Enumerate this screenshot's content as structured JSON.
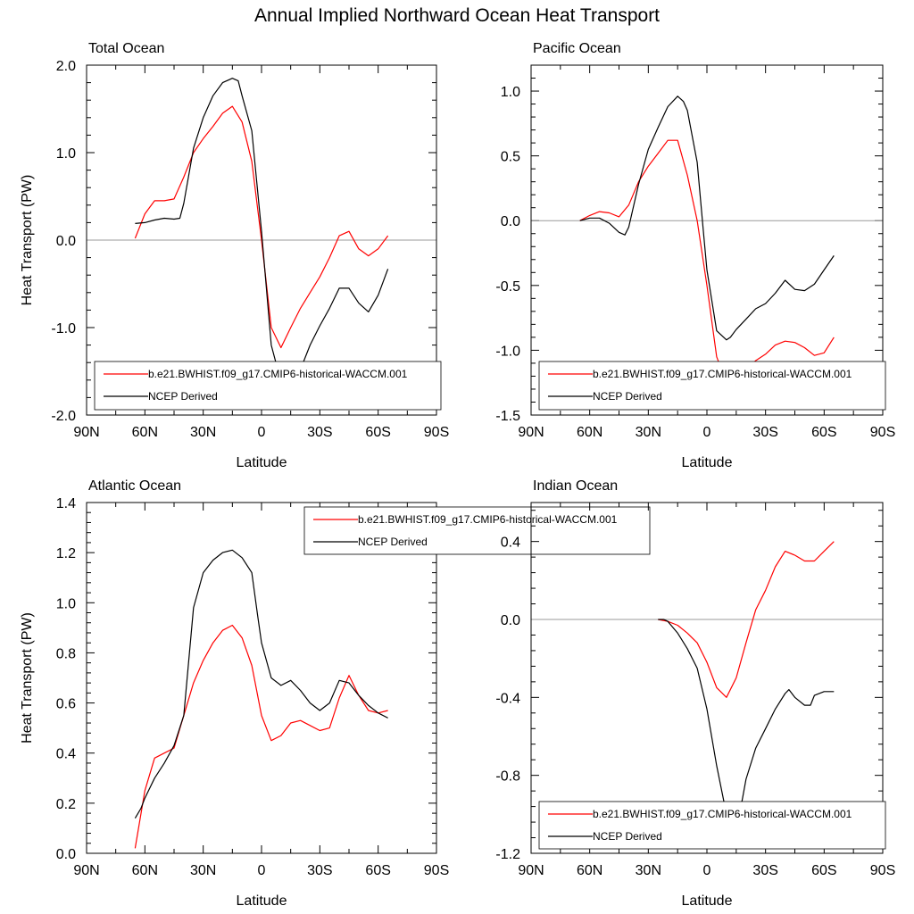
{
  "title": "Annual Implied Northward Ocean Heat Transport",
  "colors": {
    "model": "#ff0000",
    "obs": "#000000",
    "zero_line": "#999999"
  },
  "chart_data": [
    {
      "type": "line",
      "title": "Total Ocean",
      "xlabel": "Latitude",
      "ylabel": "Heat Transport (PW)",
      "xlim": [
        90,
        -90
      ],
      "ylim": [
        -2.0,
        2.0
      ],
      "x_ticks": [
        90,
        60,
        30,
        0,
        -30,
        -60,
        -90
      ],
      "x_tick_labels": [
        "90N",
        "60N",
        "30N",
        "0",
        "30S",
        "60S",
        "90S"
      ],
      "y_ticks": [
        -2.0,
        -1.0,
        0.0,
        1.0,
        2.0
      ],
      "y_tick_labels": [
        "-2.0",
        "-1.0",
        "0.0",
        "1.0",
        "2.0"
      ],
      "legend": [
        "b.e21.BWHIST.f09_g17.CMIP6-historical-WACCM.001",
        "NCEP Derived"
      ],
      "legend_location": "bottom",
      "series": [
        {
          "name": "b.e21.BWHIST.f09_g17.CMIP6-historical-WACCM.001",
          "x": [
            65,
            60,
            55,
            50,
            45,
            40,
            35,
            30,
            25,
            20,
            15,
            10,
            5,
            0,
            -5,
            -10,
            -15,
            -20,
            -25,
            -30,
            -35,
            -40,
            -45,
            -50,
            -55,
            -60,
            -65
          ],
          "y": [
            0.02,
            0.3,
            0.45,
            0.45,
            0.47,
            0.72,
            1.0,
            1.16,
            1.3,
            1.45,
            1.53,
            1.35,
            0.9,
            0.0,
            -1.0,
            -1.23,
            -1.0,
            -0.78,
            -0.6,
            -0.42,
            -0.2,
            0.05,
            0.1,
            -0.1,
            -0.18,
            -0.1,
            0.05
          ]
        },
        {
          "name": "NCEP Derived",
          "x": [
            65,
            60,
            55,
            50,
            45,
            42,
            40,
            35,
            30,
            25,
            20,
            15,
            12,
            10,
            5,
            0,
            -5,
            -10,
            -12,
            -15,
            -20,
            -25,
            -30,
            -35,
            -40,
            -45,
            -50,
            -55,
            -60,
            -65
          ],
          "y": [
            0.19,
            0.2,
            0.23,
            0.25,
            0.24,
            0.25,
            0.42,
            1.05,
            1.4,
            1.65,
            1.8,
            1.85,
            1.82,
            1.65,
            1.25,
            0.1,
            -1.2,
            -1.62,
            -1.67,
            -1.62,
            -1.48,
            -1.2,
            -0.98,
            -0.78,
            -0.55,
            -0.55,
            -0.72,
            -0.82,
            -0.63,
            -0.33
          ]
        }
      ]
    },
    {
      "type": "line",
      "title": "Pacific Ocean",
      "xlabel": "Latitude",
      "ylabel": "",
      "xlim": [
        90,
        -90
      ],
      "ylim": [
        -1.5,
        1.2
      ],
      "x_ticks": [
        90,
        60,
        30,
        0,
        -30,
        -60,
        -90
      ],
      "x_tick_labels": [
        "90N",
        "60N",
        "30N",
        "0",
        "30S",
        "60S",
        "90S"
      ],
      "y_ticks": [
        -1.5,
        -1.0,
        -0.5,
        0.0,
        0.5,
        1.0
      ],
      "y_tick_labels": [
        "-1.5",
        "-1.0",
        "-0.5",
        "0.0",
        "0.5",
        "1.0"
      ],
      "legend": [
        "b.e21.BWHIST.f09_g17.CMIP6-historical-WACCM.001",
        "NCEP Derived"
      ],
      "legend_location": "bottom",
      "series": [
        {
          "name": "b.e21.BWHIST.f09_g17.CMIP6-historical-WACCM.001",
          "x": [
            65,
            60,
            55,
            50,
            45,
            40,
            35,
            30,
            25,
            20,
            15,
            10,
            5,
            0,
            -5,
            -10,
            -15,
            -20,
            -25,
            -30,
            -35,
            -40,
            -45,
            -50,
            -55,
            -60,
            -65
          ],
          "y": [
            0.0,
            0.04,
            0.07,
            0.06,
            0.03,
            0.12,
            0.3,
            0.42,
            0.52,
            0.62,
            0.62,
            0.35,
            0.0,
            -0.5,
            -1.05,
            -1.25,
            -1.22,
            -1.15,
            -1.08,
            -1.03,
            -0.96,
            -0.93,
            -0.94,
            -0.98,
            -1.04,
            -1.02,
            -0.9
          ]
        },
        {
          "name": "NCEP Derived",
          "x": [
            65,
            60,
            55,
            50,
            45,
            42,
            40,
            35,
            30,
            25,
            20,
            15,
            12,
            10,
            5,
            2,
            0,
            -5,
            -10,
            -12,
            -15,
            -20,
            -25,
            -30,
            -35,
            -40,
            -45,
            -50,
            -55,
            -60,
            -65
          ],
          "y": [
            0.0,
            0.02,
            0.02,
            -0.02,
            -0.09,
            -0.11,
            -0.05,
            0.28,
            0.55,
            0.72,
            0.88,
            0.96,
            0.92,
            0.85,
            0.45,
            -0.05,
            -0.38,
            -0.85,
            -0.92,
            -0.9,
            -0.84,
            -0.76,
            -0.68,
            -0.64,
            -0.56,
            -0.46,
            -0.53,
            -0.54,
            -0.49,
            -0.38,
            -0.27
          ]
        }
      ]
    },
    {
      "type": "line",
      "title": "Atlantic Ocean",
      "xlabel": "Latitude",
      "ylabel": "Heat Transport (PW)",
      "xlim": [
        90,
        -90
      ],
      "ylim": [
        0.0,
        1.4
      ],
      "x_ticks": [
        90,
        60,
        30,
        0,
        -30,
        -60,
        -90
      ],
      "x_tick_labels": [
        "90N",
        "60N",
        "30N",
        "0",
        "30S",
        "60S",
        "90S"
      ],
      "y_ticks": [
        0.0,
        0.2,
        0.4,
        0.6,
        0.8,
        1.0,
        1.2,
        1.4
      ],
      "y_tick_labels": [
        "0.0",
        "0.2",
        "0.4",
        "0.6",
        "0.8",
        "1.0",
        "1.2",
        "1.4"
      ],
      "legend": [
        "b.e21.BWHIST.f09_g17.CMIP6-historical-WACCM.001",
        "NCEP Derived"
      ],
      "legend_location": "top-center",
      "series": [
        {
          "name": "b.e21.BWHIST.f09_g17.CMIP6-historical-WACCM.001",
          "x": [
            65,
            60,
            55,
            50,
            45,
            40,
            35,
            30,
            25,
            20,
            15,
            10,
            5,
            0,
            -5,
            -10,
            -15,
            -20,
            -25,
            -30,
            -35,
            -40,
            -45,
            -50,
            -55,
            -60,
            -65
          ],
          "y": [
            0.02,
            0.25,
            0.38,
            0.4,
            0.42,
            0.55,
            0.68,
            0.77,
            0.84,
            0.89,
            0.91,
            0.86,
            0.75,
            0.55,
            0.45,
            0.47,
            0.52,
            0.53,
            0.51,
            0.49,
            0.5,
            0.62,
            0.71,
            0.63,
            0.57,
            0.56,
            0.57
          ]
        },
        {
          "name": "NCEP Derived",
          "x": [
            65,
            62,
            60,
            55,
            50,
            45,
            40,
            35,
            30,
            25,
            20,
            15,
            10,
            5,
            2,
            0,
            -5,
            -10,
            -15,
            -20,
            -25,
            -30,
            -35,
            -40,
            -45,
            -50,
            -55,
            -60,
            -65
          ],
          "y": [
            0.14,
            0.18,
            0.22,
            0.3,
            0.36,
            0.43,
            0.55,
            0.98,
            1.12,
            1.17,
            1.2,
            1.21,
            1.18,
            1.12,
            0.95,
            0.84,
            0.7,
            0.67,
            0.69,
            0.65,
            0.6,
            0.57,
            0.6,
            0.69,
            0.68,
            0.63,
            0.59,
            0.56,
            0.54
          ]
        }
      ]
    },
    {
      "type": "line",
      "title": "Indian Ocean",
      "xlabel": "Latitude",
      "ylabel": "",
      "xlim": [
        90,
        -90
      ],
      "ylim": [
        -1.2,
        0.6
      ],
      "x_ticks": [
        90,
        60,
        30,
        0,
        -30,
        -60,
        -90
      ],
      "x_tick_labels": [
        "90N",
        "60N",
        "30N",
        "0",
        "30S",
        "60S",
        "90S"
      ],
      "y_ticks": [
        -1.2,
        -0.8,
        -0.4,
        0.0,
        0.4
      ],
      "y_tick_labels": [
        "-1.2",
        "-0.8",
        "-0.4",
        "0.0",
        "0.4"
      ],
      "legend": [
        "b.e21.BWHIST.f09_g17.CMIP6-historical-WACCM.001",
        "NCEP Derived"
      ],
      "legend_location": "bottom",
      "series": [
        {
          "name": "b.e21.BWHIST.f09_g17.CMIP6-historical-WACCM.001",
          "x": [
            25,
            20,
            15,
            10,
            5,
            0,
            -5,
            -10,
            -15,
            -20,
            -25,
            -30,
            -35,
            -40,
            -45,
            -50,
            -55,
            -60,
            -65
          ],
          "y": [
            0.0,
            -0.01,
            -0.03,
            -0.07,
            -0.12,
            -0.22,
            -0.35,
            -0.4,
            -0.3,
            -0.12,
            0.05,
            0.15,
            0.27,
            0.35,
            0.33,
            0.3,
            0.3,
            0.35,
            0.4
          ]
        },
        {
          "name": "NCEP Derived",
          "x": [
            25,
            22,
            20,
            15,
            10,
            5,
            0,
            -5,
            -8,
            -10,
            -12,
            -15,
            -18,
            -20,
            -25,
            -30,
            -35,
            -40,
            -42,
            -45,
            -50,
            -53,
            -55,
            -60,
            -65
          ],
          "y": [
            0.0,
            0.0,
            -0.01,
            -0.07,
            -0.15,
            -0.25,
            -0.46,
            -0.75,
            -0.9,
            -1.0,
            -1.05,
            -1.0,
            -0.93,
            -0.82,
            -0.66,
            -0.56,
            -0.46,
            -0.38,
            -0.36,
            -0.4,
            -0.44,
            -0.44,
            -0.39,
            -0.37,
            -0.37
          ]
        }
      ]
    }
  ]
}
